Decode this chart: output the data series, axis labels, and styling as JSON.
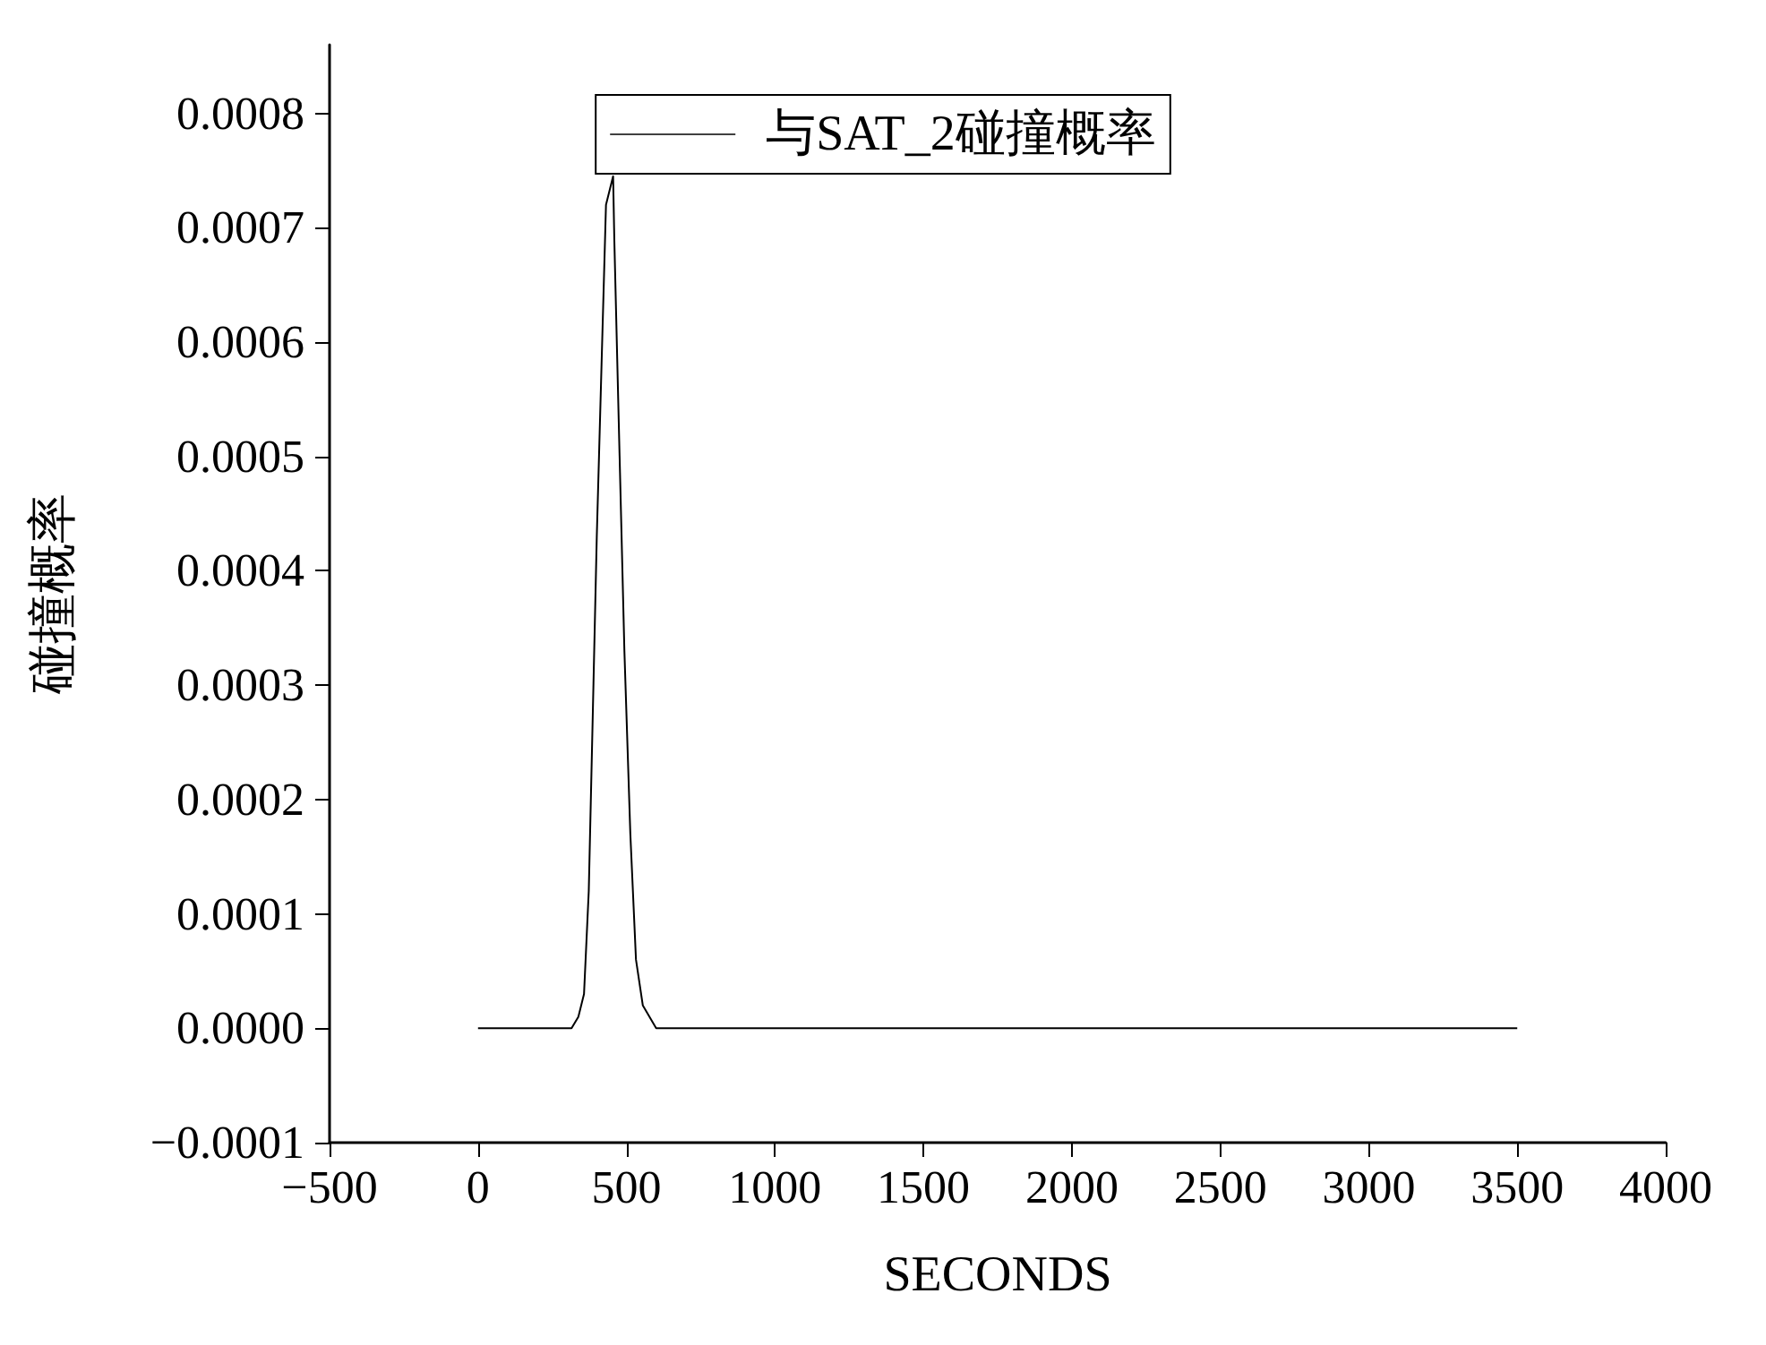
{
  "chart_data": {
    "type": "line",
    "xlabel": "SECONDS",
    "ylabel": "碰撞概率",
    "x": [
      0,
      315,
      338,
      357,
      373,
      387,
      400,
      416,
      431,
      455,
      459,
      474,
      493,
      513,
      532,
      555,
      600,
      3500
    ],
    "series": [
      {
        "name": "与SAT_2碰撞概率",
        "color": "#000000",
        "values": [
          0,
          0,
          1e-05,
          3e-05,
          0.00012,
          0.00028,
          0.00043,
          0.00058,
          0.00072,
          0.000745,
          0.00069,
          0.00053,
          0.00033,
          0.00017,
          6e-05,
          2e-05,
          0,
          0
        ]
      }
    ],
    "xlim": [
      -500,
      4000
    ],
    "xticks": [
      -500,
      0,
      500,
      1000,
      1500,
      2000,
      2500,
      3000,
      3500,
      4000
    ],
    "ylim": [
      -0.0001,
      0.00086
    ],
    "yticks": [
      {
        "value": -0.0001,
        "label": "−0.0001"
      },
      {
        "value": 0,
        "label": "0.0000"
      },
      {
        "value": 0.0001,
        "label": "0.0001"
      },
      {
        "value": 0.0002,
        "label": "0.0002"
      },
      {
        "value": 0.0003,
        "label": "0.0003"
      },
      {
        "value": 0.0004,
        "label": "0.0004"
      },
      {
        "value": 0.0005,
        "label": "0.0005"
      },
      {
        "value": 0.0006,
        "label": "0.0006"
      },
      {
        "value": 0.0007,
        "label": "0.0007"
      },
      {
        "value": 0.0008,
        "label": "0.0008"
      }
    ],
    "grid": false,
    "legend": "top",
    "marker": "none",
    "line_style": "solid"
  }
}
